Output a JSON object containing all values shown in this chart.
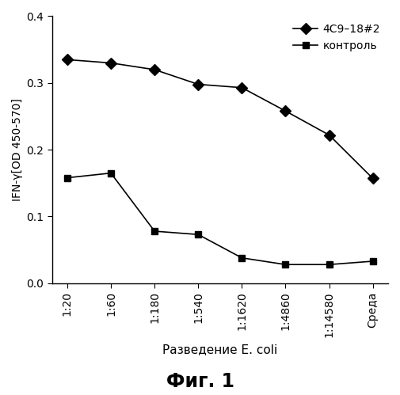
{
  "x_labels": [
    "1:20",
    "1:60",
    "1:180",
    "1:540",
    "1:1620",
    "1:4860",
    "1:14580",
    "Среда"
  ],
  "series1_label": "4C9–18#2",
  "series1_values": [
    0.335,
    0.33,
    0.32,
    0.298,
    0.293,
    0.258,
    0.222,
    0.157
  ],
  "series2_label": "контроль",
  "series2_values": [
    0.158,
    0.165,
    0.078,
    0.073,
    0.038,
    0.028,
    0.028,
    0.033
  ],
  "ylabel": "IFN-γ[OD 450-570]",
  "xlabel": "Разведение E. coli",
  "figure_label": "Фиг. 1",
  "ylim": [
    0,
    0.4
  ],
  "yticks": [
    0.0,
    0.1,
    0.2,
    0.3,
    0.4
  ],
  "line_color": "#000000",
  "background_color": "#ffffff",
  "marker1": "D",
  "marker2": "s"
}
